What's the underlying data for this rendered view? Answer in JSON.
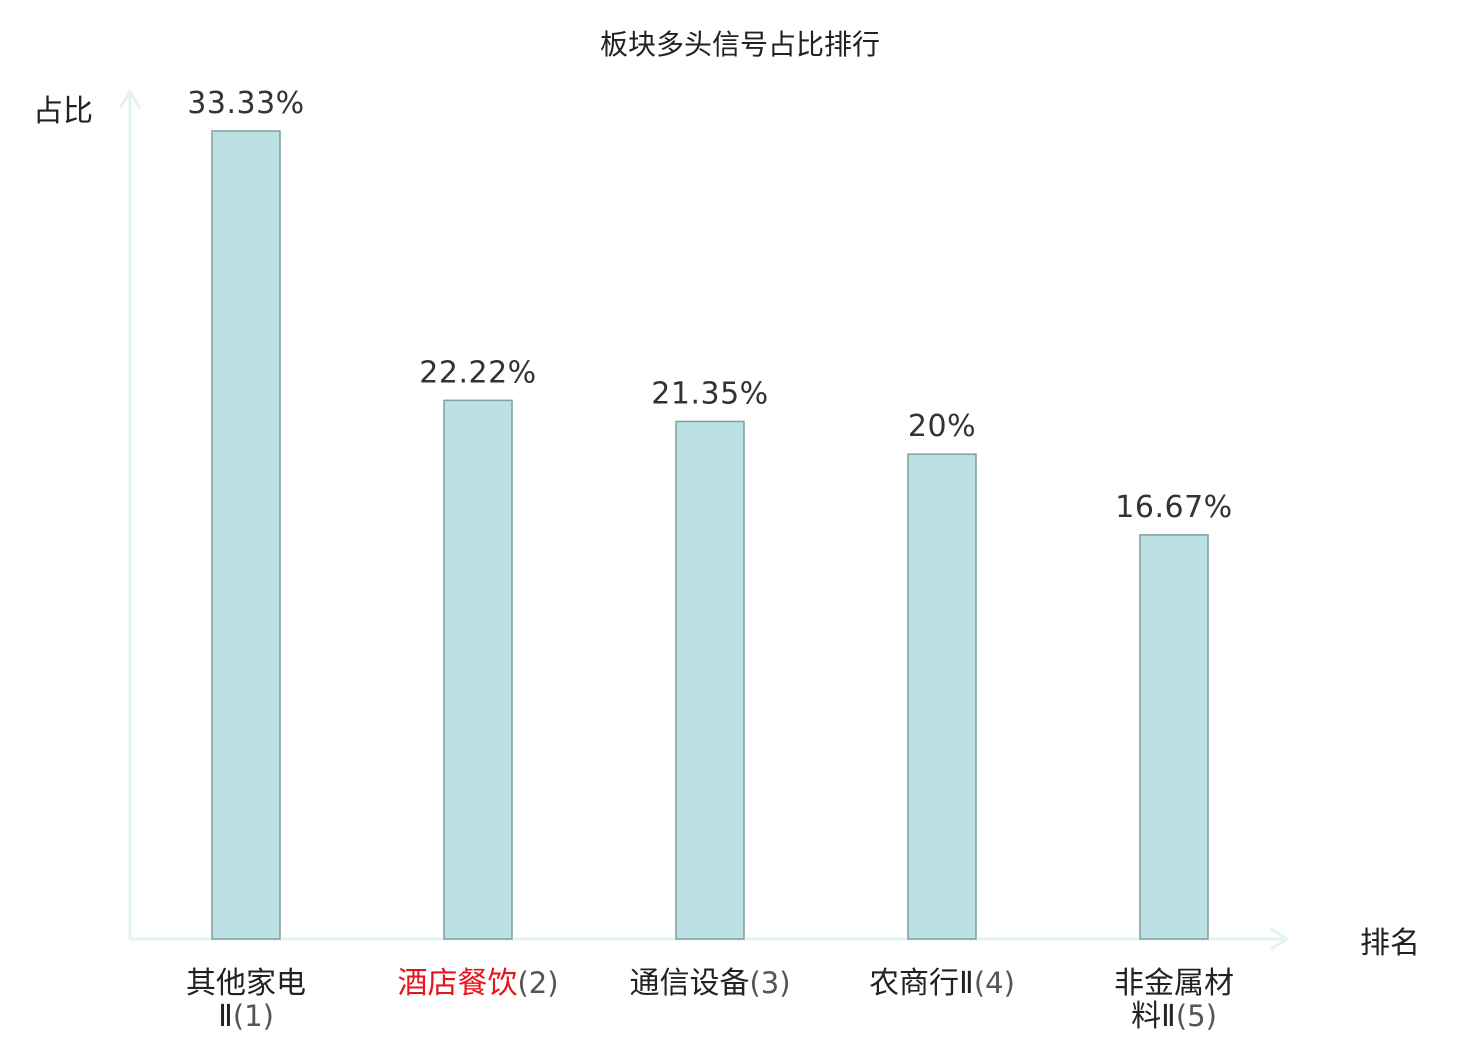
{
  "chart_data": {
    "type": "bar",
    "title": "板块多头信号占比排行",
    "xlabel": "排名",
    "ylabel": "占比",
    "ylim": [
      0,
      33.33
    ],
    "grid": false,
    "legend": "none",
    "categories": [
      {
        "name_lines": [
          "其他家电",
          "Ⅱ"
        ],
        "rank": "(1)",
        "highlight": false
      },
      {
        "name_lines": [
          "酒店餐饮"
        ],
        "rank": "(2)",
        "highlight": true
      },
      {
        "name_lines": [
          "通信设备"
        ],
        "rank": "(3)",
        "highlight": false
      },
      {
        "name_lines": [
          "农商行Ⅱ"
        ],
        "rank": "(4)",
        "highlight": false
      },
      {
        "name_lines": [
          "非金属材",
          "料Ⅱ"
        ],
        "rank": "(5)",
        "highlight": false
      }
    ],
    "values": [
      33.33,
      22.22,
      21.35,
      20,
      16.67
    ],
    "value_labels": [
      "33.33%",
      "22.22%",
      "21.35%",
      "20%",
      "16.67%"
    ]
  },
  "colors": {
    "bar_fill": "#bbe0e2",
    "bar_stroke": "#7f9fa2",
    "axis": "#e2f3f0",
    "highlight_text": "#e8141b",
    "normal_text": "#222222",
    "rank_text": "#555555",
    "value_text": "#333333"
  }
}
